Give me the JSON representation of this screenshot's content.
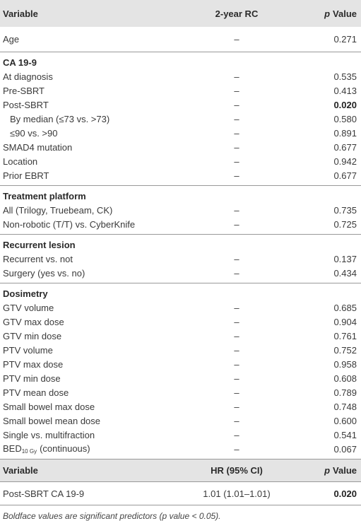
{
  "table": {
    "header": [
      "Variable",
      "2-year RC",
      {
        "italic": "p",
        "text": "Value"
      }
    ],
    "top_rows": [
      {
        "cells": [
          "Age",
          "–",
          "0.271"
        ]
      }
    ],
    "sections": [
      {
        "heading": "CA 19-9",
        "rows": [
          {
            "cells": [
              "At diagnosis",
              "–",
              "0.535"
            ]
          },
          {
            "cells": [
              "Pre-SBRT",
              "–",
              "0.413"
            ]
          },
          {
            "cells": [
              "Post-SBRT",
              "–",
              "0.020"
            ],
            "bold_value": true
          },
          {
            "cells": [
              "By median (≤73 vs. >73)",
              "–",
              "0.580"
            ],
            "indent": true
          },
          {
            "cells": [
              "≤90 vs. >90",
              "–",
              "0.891"
            ],
            "indent": true
          },
          {
            "cells": [
              "SMAD4 mutation",
              "–",
              "0.677"
            ]
          },
          {
            "cells": [
              "Location",
              "–",
              "0.942"
            ]
          },
          {
            "cells": [
              "Prior EBRT",
              "–",
              "0.677"
            ]
          }
        ]
      },
      {
        "heading": "Treatment platform",
        "rows": [
          {
            "cells": [
              "All (Trilogy, Truebeam, CK)",
              "–",
              "0.735"
            ]
          },
          {
            "cells": [
              "Non-robotic (T/T) vs. CyberKnife",
              "–",
              "0.725"
            ]
          }
        ]
      },
      {
        "heading": "Recurrent lesion",
        "rows": [
          {
            "cells": [
              "Recurrent vs. not",
              "–",
              "0.137"
            ]
          },
          {
            "cells": [
              "Surgery (yes vs. no)",
              "–",
              "0.434"
            ]
          }
        ]
      },
      {
        "heading": "Dosimetry",
        "rows": [
          {
            "cells": [
              "GTV volume",
              "–",
              "0.685"
            ]
          },
          {
            "cells": [
              "GTV max dose",
              "–",
              "0.904"
            ]
          },
          {
            "cells": [
              "GTV min dose",
              "–",
              "0.761"
            ]
          },
          {
            "cells": [
              "PTV volume",
              "–",
              "0.752"
            ]
          },
          {
            "cells": [
              "PTV max dose",
              "–",
              "0.958"
            ]
          },
          {
            "cells": [
              "PTV min dose",
              "–",
              "0.608"
            ]
          },
          {
            "cells": [
              "PTV mean dose",
              "–",
              "0.789"
            ]
          },
          {
            "cells": [
              "Small bowel max dose",
              "–",
              "0.748"
            ]
          },
          {
            "cells": [
              "Small bowel mean dose",
              "–",
              "0.600"
            ]
          },
          {
            "cells": [
              "Single vs. multifraction",
              "–",
              "0.541"
            ]
          },
          {
            "cells": [
              {
                "text": "BED",
                "sub": "10 Gy",
                "rest": "(continuous)"
              },
              "–",
              "0.067"
            ]
          }
        ]
      }
    ],
    "header2": [
      "Variable",
      "HR (95% CI)",
      {
        "italic": "p",
        "text": "Value"
      }
    ],
    "rows2": [
      {
        "cells": [
          "Post-SBRT CA 19-9",
          "1.01 (1.01–1.01)",
          "0.020"
        ],
        "bold_value": true
      }
    ],
    "footnote": "Boldface values are significant predictors (p value < 0.05)."
  }
}
